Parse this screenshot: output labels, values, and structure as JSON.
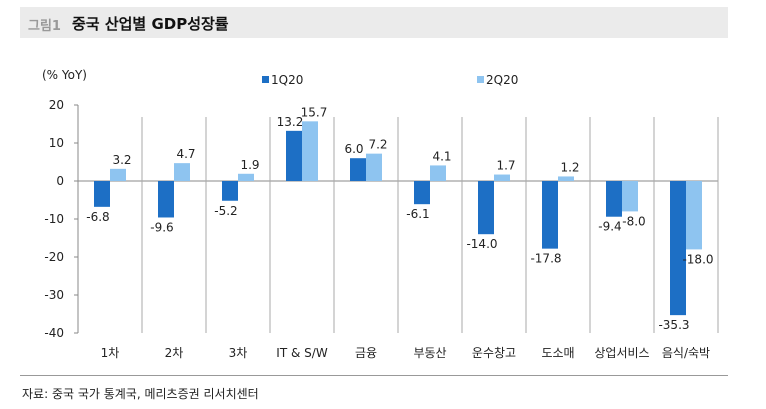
{
  "header": {
    "figure_label": "그림1",
    "title": "중국 산업별 GDP성장률"
  },
  "source": "자료: 중국 국가 통계국, 메리츠증권 리서치센터",
  "chart_data": {
    "type": "bar",
    "title": "중국 산업별 GDP성장률",
    "ylabel": "(% YoY)",
    "ylim": [
      -40,
      20
    ],
    "yticks": [
      20,
      10,
      0,
      -10,
      -20,
      -30,
      -40
    ],
    "categories": [
      "1차",
      "2차",
      "3차",
      "IT & S/W",
      "금융",
      "부동산",
      "운수창고",
      "도소매",
      "상업서비스",
      "음식/숙박"
    ],
    "series": [
      {
        "name": "1Q20",
        "color": "#1d6fc5",
        "values": [
          -6.8,
          -9.6,
          -5.2,
          13.2,
          6.0,
          -6.1,
          -14.0,
          -17.8,
          -9.4,
          -35.3
        ]
      },
      {
        "name": "2Q20",
        "color": "#8ec4f0",
        "values": [
          3.2,
          4.7,
          1.9,
          15.7,
          7.2,
          4.1,
          1.7,
          1.2,
          -8.0,
          -18.0
        ]
      }
    ],
    "legend": "top",
    "grid": false
  }
}
